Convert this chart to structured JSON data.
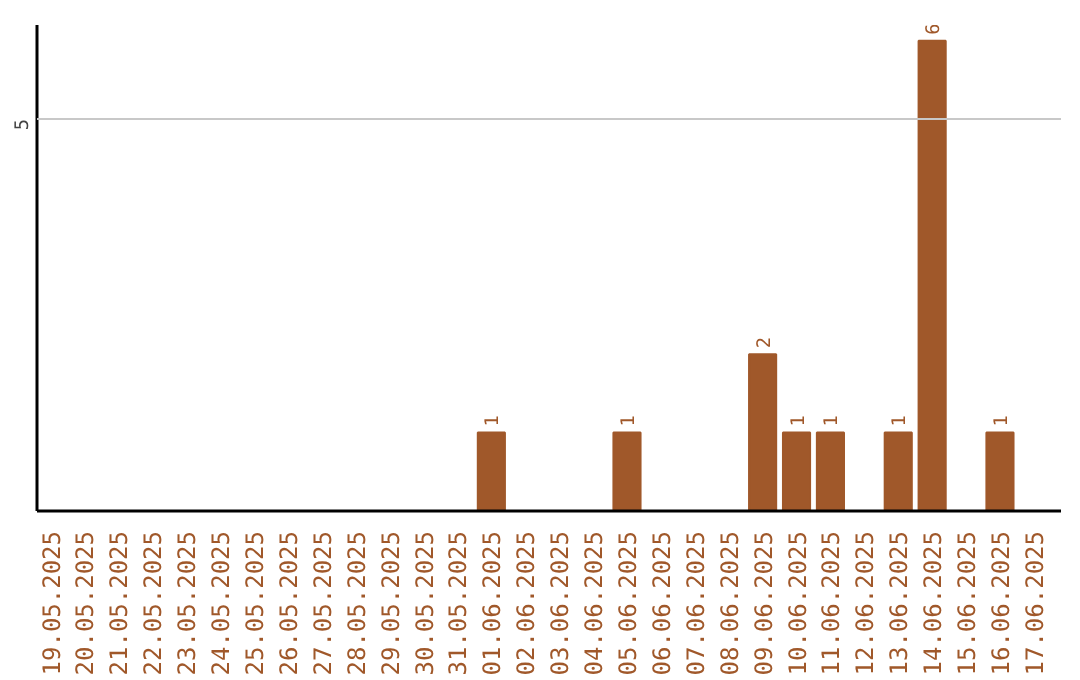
{
  "chart_data": {
    "type": "bar",
    "categories": [
      "19.05.2025",
      "20.05.2025",
      "21.05.2025",
      "22.05.2025",
      "23.05.2025",
      "24.05.2025",
      "25.05.2025",
      "26.05.2025",
      "27.05.2025",
      "28.05.2025",
      "29.05.2025",
      "30.05.2025",
      "31.05.2025",
      "01.06.2025",
      "02.06.2025",
      "03.06.2025",
      "04.06.2025",
      "05.06.2025",
      "06.06.2025",
      "07.06.2025",
      "08.06.2025",
      "09.06.2025",
      "10.06.2025",
      "11.06.2025",
      "12.06.2025",
      "13.06.2025",
      "14.06.2025",
      "15.06.2025",
      "16.06.2025",
      "17.06.2025"
    ],
    "values": [
      null,
      null,
      null,
      null,
      null,
      null,
      null,
      null,
      null,
      null,
      null,
      null,
      null,
      1,
      null,
      null,
      null,
      1,
      null,
      null,
      null,
      2,
      1,
      1,
      null,
      1,
      6,
      null,
      1,
      null
    ],
    "color": "#a0582a",
    "ylim": [
      0,
      6.2
    ],
    "data_labels": true,
    "ref_lines": [
      {
        "axis": "y",
        "value": 5,
        "label": "5",
        "color": "#c8c8c8"
      }
    ]
  }
}
